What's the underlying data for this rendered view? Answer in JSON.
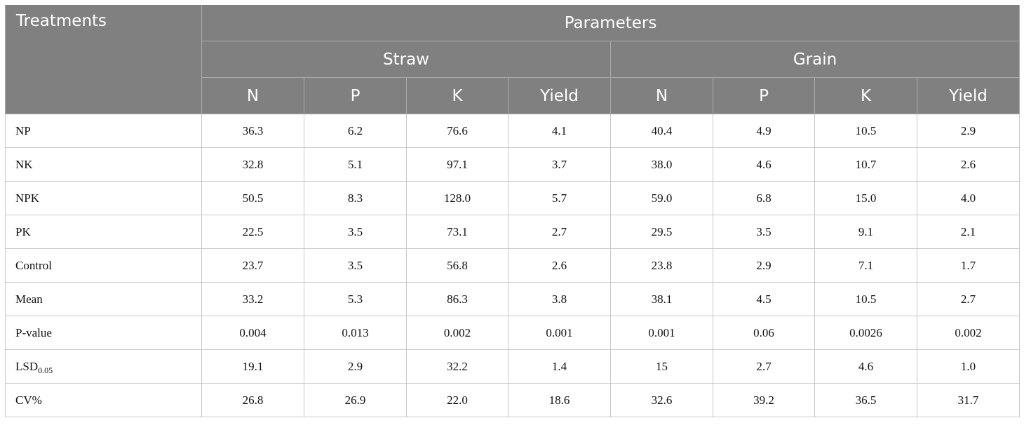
{
  "table": {
    "treatments_header": "Treatments",
    "parameters_header": "Parameters",
    "groups": [
      "Straw",
      "Grain"
    ],
    "columns": [
      "N",
      "P",
      "K",
      "Yield",
      "N",
      "P",
      "K",
      "Yield"
    ],
    "rows": [
      {
        "label": "NP",
        "values": [
          "36.3",
          "6.2",
          "76.6",
          "4.1",
          "40.4",
          "4.9",
          "10.5",
          "2.9"
        ]
      },
      {
        "label": "NK",
        "values": [
          "32.8",
          "5.1",
          "97.1",
          "3.7",
          "38.0",
          "4.6",
          "10.7",
          "2.6"
        ]
      },
      {
        "label": "NPK",
        "values": [
          "50.5",
          "8.3",
          "128.0",
          "5.7",
          "59.0",
          "6.8",
          "15.0",
          "4.0"
        ]
      },
      {
        "label": "PK",
        "values": [
          "22.5",
          "3.5",
          "73.1",
          "2.7",
          "29.5",
          "3.5",
          "9.1",
          "2.1"
        ]
      },
      {
        "label": "Control",
        "values": [
          "23.7",
          "3.5",
          "56.8",
          "2.6",
          "23.8",
          "2.9",
          "7.1",
          "1.7"
        ]
      },
      {
        "label": "Mean",
        "values": [
          "33.2",
          "5.3",
          "86.3",
          "3.8",
          "38.1",
          "4.5",
          "10.5",
          "2.7"
        ]
      },
      {
        "label": "P-value",
        "values": [
          "0.004",
          "0.013",
          "0.002",
          "0.001",
          "0.001",
          "0.06",
          "0.0026",
          "0.002"
        ]
      },
      {
        "label": "LSD",
        "label_sub": "0.05",
        "values": [
          "19.1",
          "2.9",
          "32.2",
          "1.4",
          "15",
          "2.7",
          "4.6",
          "1.0"
        ]
      },
      {
        "label": "CV%",
        "values": [
          "26.8",
          "26.9",
          "22.0",
          "18.6",
          "32.6",
          "39.2",
          "36.5",
          "31.7"
        ]
      }
    ]
  }
}
